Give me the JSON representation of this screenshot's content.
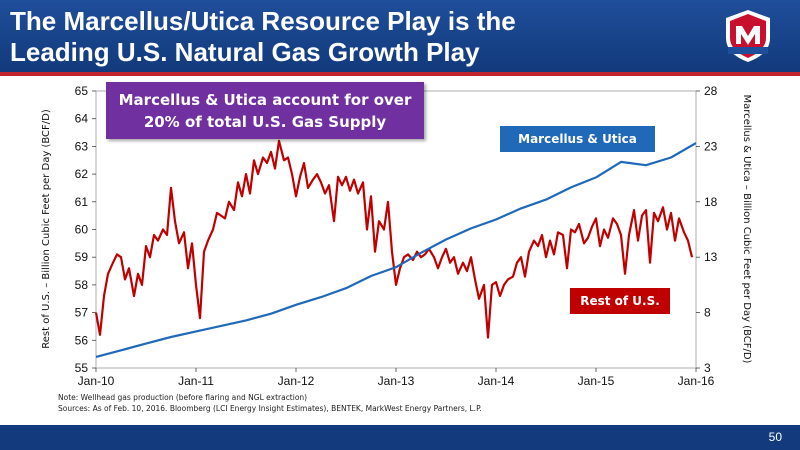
{
  "header": {
    "title_line1": "The Marcellus/Utica Resource Play is the",
    "title_line2": "Leading U.S. Natural Gas Growth Play"
  },
  "logo": {
    "label": "MARATHON",
    "colors": {
      "red": "#c8102e",
      "blue": "#1f4e9a"
    }
  },
  "callout": {
    "line1": "Marcellus & Utica account for over",
    "line2": "20% of total U.S. Gas Supply"
  },
  "notes": {
    "line1": "Note: Wellhead gas production (before flaring and NGL extraction)",
    "line2": "Sources: As of Feb. 10, 2016. Bloomberg (LCI Energy Insight Estimates), BENTEK, MarkWest Energy Partners, L.P."
  },
  "page_number": "50",
  "colors": {
    "marcellus": "#1f69b8",
    "rest": "#c00000",
    "callout": "#7030a0",
    "header": "#123a7c"
  },
  "chart_data": {
    "type": "line",
    "xlabel": "",
    "ylabel_left": "Rest of U.S. – Billion Cubic Feet per Day (BCF/D)",
    "ylabel_right": "Marcellus & Utica – Billion Cubic Feet per Day (BCF/D)",
    "x_ticks": [
      "Jan-10",
      "Jan-11",
      "Jan-12",
      "Jan-13",
      "Jan-14",
      "Jan-15",
      "Jan-16"
    ],
    "x_range": [
      2010.0,
      2016.0
    ],
    "y_left": {
      "min": 55,
      "max": 65,
      "ticks": [
        55,
        56,
        57,
        58,
        59,
        60,
        61,
        62,
        63,
        64,
        65
      ]
    },
    "y_right": {
      "min": 3,
      "max": 28,
      "ticks": [
        3,
        8,
        13,
        18,
        23,
        28
      ]
    },
    "grid": false,
    "series": [
      {
        "name": "Marcellus & Utica",
        "axis": "right",
        "x": [
          2010.0,
          2010.25,
          2010.5,
          2010.75,
          2011.0,
          2011.25,
          2011.5,
          2011.75,
          2012.0,
          2012.25,
          2012.5,
          2012.75,
          2013.0,
          2013.25,
          2013.5,
          2013.75,
          2014.0,
          2014.25,
          2014.5,
          2014.75,
          2015.0,
          2015.25,
          2015.5,
          2015.75,
          2016.0
        ],
        "values": [
          4.0,
          4.6,
          5.2,
          5.8,
          6.3,
          6.8,
          7.3,
          7.9,
          8.7,
          9.4,
          10.2,
          11.3,
          12.1,
          13.4,
          14.6,
          15.6,
          16.4,
          17.4,
          18.2,
          19.3,
          20.2,
          21.6,
          21.3,
          22.0,
          23.3
        ]
      },
      {
        "name": "Rest of U.S.",
        "axis": "left",
        "x": [
          2010.0,
          2010.04,
          2010.08,
          2010.12,
          2010.17,
          2010.21,
          2010.25,
          2010.29,
          2010.33,
          2010.38,
          2010.42,
          2010.46,
          2010.5,
          2010.54,
          2010.58,
          2010.62,
          2010.67,
          2010.71,
          2010.75,
          2010.79,
          2010.83,
          2010.88,
          2010.92,
          2010.96,
          2011.0,
          2011.04,
          2011.08,
          2011.12,
          2011.17,
          2011.21,
          2011.25,
          2011.29,
          2011.33,
          2011.38,
          2011.42,
          2011.46,
          2011.5,
          2011.54,
          2011.58,
          2011.62,
          2011.67,
          2011.71,
          2011.75,
          2011.79,
          2011.83,
          2011.88,
          2011.92,
          2011.96,
          2012.0,
          2012.04,
          2012.08,
          2012.12,
          2012.17,
          2012.21,
          2012.25,
          2012.29,
          2012.33,
          2012.38,
          2012.42,
          2012.46,
          2012.5,
          2012.54,
          2012.58,
          2012.62,
          2012.67,
          2012.71,
          2012.75,
          2012.79,
          2012.83,
          2012.88,
          2012.92,
          2012.96,
          2013.0,
          2013.04,
          2013.08,
          2013.12,
          2013.17,
          2013.21,
          2013.25,
          2013.29,
          2013.33,
          2013.38,
          2013.42,
          2013.46,
          2013.5,
          2013.54,
          2013.58,
          2013.62,
          2013.67,
          2013.71,
          2013.75,
          2013.79,
          2013.83,
          2013.88,
          2013.92,
          2013.96,
          2014.0,
          2014.04,
          2014.08,
          2014.12,
          2014.17,
          2014.21,
          2014.25,
          2014.29,
          2014.33,
          2014.38,
          2014.42,
          2014.46,
          2014.5,
          2014.54,
          2014.58,
          2014.62,
          2014.67,
          2014.71,
          2014.75,
          2014.79,
          2014.83,
          2014.88,
          2014.92,
          2014.96,
          2015.0,
          2015.04,
          2015.08,
          2015.12,
          2015.17,
          2015.21,
          2015.25,
          2015.29,
          2015.33,
          2015.38,
          2015.42,
          2015.46,
          2015.5,
          2015.54,
          2015.58,
          2015.62,
          2015.67,
          2015.71,
          2015.75,
          2015.79,
          2015.83,
          2015.88,
          2015.92,
          2015.96
        ],
        "values": [
          57.0,
          56.2,
          57.6,
          58.4,
          58.8,
          59.1,
          59.0,
          58.2,
          58.6,
          57.6,
          58.4,
          58.0,
          59.4,
          59.0,
          59.8,
          59.6,
          60.0,
          59.8,
          61.5,
          60.3,
          59.5,
          59.9,
          58.6,
          59.5,
          58.0,
          56.8,
          59.2,
          59.6,
          60.0,
          60.6,
          60.5,
          60.4,
          61.0,
          60.7,
          61.7,
          61.2,
          62.0,
          61.3,
          62.5,
          62.0,
          62.6,
          62.4,
          62.8,
          62.2,
          63.2,
          62.5,
          62.6,
          62.0,
          61.2,
          61.9,
          62.4,
          61.5,
          61.8,
          62.0,
          61.7,
          61.3,
          61.6,
          60.3,
          61.9,
          61.6,
          61.9,
          61.4,
          61.8,
          61.3,
          61.7,
          60.0,
          61.2,
          59.2,
          60.3,
          60.0,
          61.0,
          59.2,
          58.0,
          58.6,
          59.0,
          59.1,
          58.9,
          59.2,
          59.0,
          59.1,
          59.3,
          59.0,
          58.6,
          59.0,
          59.3,
          58.8,
          59.0,
          58.4,
          58.8,
          58.5,
          59.0,
          58.2,
          57.5,
          58.0,
          56.1,
          58.0,
          58.1,
          57.6,
          58.0,
          58.2,
          58.3,
          58.8,
          59.0,
          58.3,
          59.2,
          59.6,
          59.4,
          59.8,
          59.0,
          59.6,
          59.1,
          59.9,
          59.8,
          58.6,
          60.0,
          59.9,
          60.2,
          59.5,
          59.7,
          60.1,
          60.4,
          59.4,
          60.0,
          59.7,
          60.4,
          60.2,
          59.8,
          58.4,
          59.8,
          60.7,
          59.6,
          60.5,
          60.7,
          58.8,
          60.6,
          60.3,
          60.8,
          60.0,
          60.6,
          59.6,
          60.4,
          59.9,
          59.6,
          59.0
        ]
      }
    ]
  }
}
